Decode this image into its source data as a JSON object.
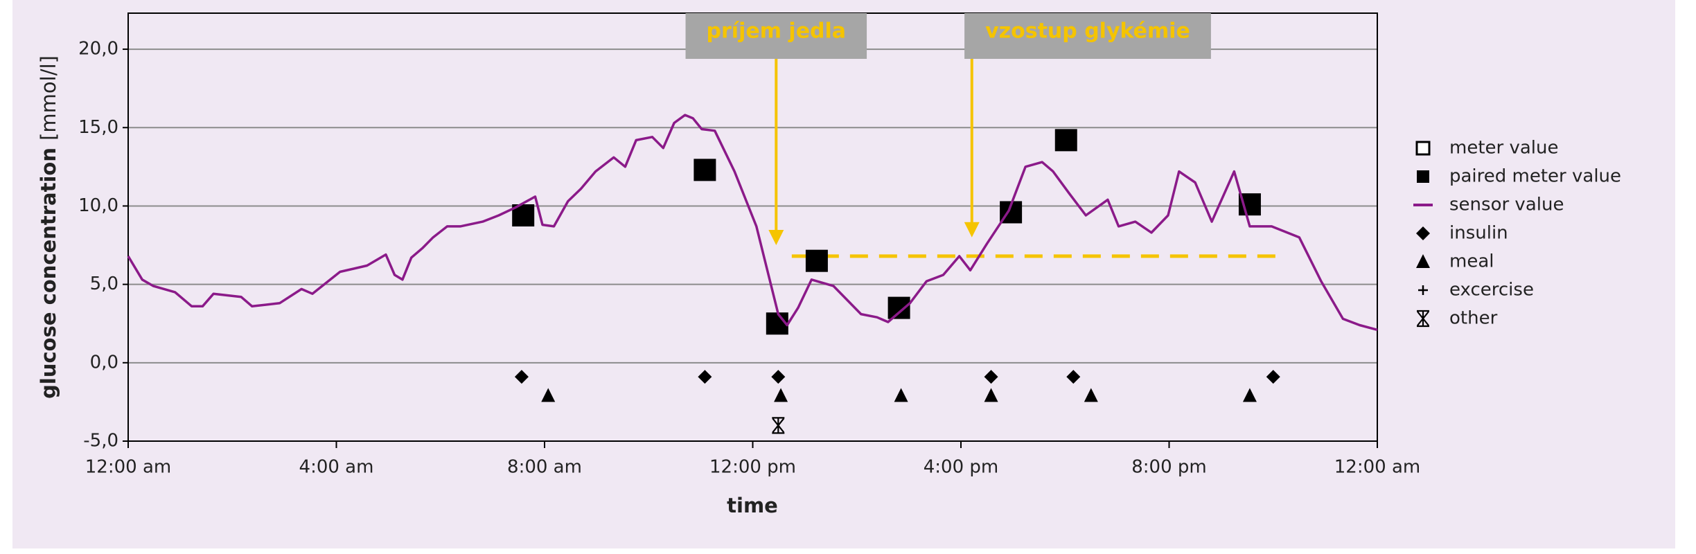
{
  "chart_data": {
    "type": "line",
    "xlabel": "time",
    "ylabel": "glucose concentration",
    "yunit": "[mmol/l]",
    "xlim": [
      0,
      24
    ],
    "xticks": [
      {
        "value": 0,
        "label": "12:00 am"
      },
      {
        "value": 4,
        "label": "4:00 am"
      },
      {
        "value": 8,
        "label": "8:00 am"
      },
      {
        "value": 12,
        "label": "12:00 pm"
      },
      {
        "value": 16,
        "label": "4:00 pm"
      },
      {
        "value": 20,
        "label": "8:00 pm"
      },
      {
        "value": 24,
        "label": "12:00 am"
      }
    ],
    "ylim": [
      -5,
      22.3
    ],
    "yticks": [
      {
        "value": -5,
        "label": "-5,0"
      },
      {
        "value": 0,
        "label": "0,0"
      },
      {
        "value": 5,
        "label": "5,0"
      },
      {
        "value": 10,
        "label": "10,0"
      },
      {
        "value": 15,
        "label": "15,0"
      },
      {
        "value": 20,
        "label": "20,0"
      }
    ],
    "grid": true,
    "legend": "right",
    "series": [
      {
        "name": "meter value",
        "marker": "open-square",
        "color": "#000000",
        "x": [],
        "values": []
      },
      {
        "name": "paired meter value",
        "marker": "square",
        "color": "#000000",
        "x": [
          7.59,
          11.08,
          12.47,
          13.23,
          14.81,
          16.96,
          18.02,
          21.55
        ],
        "values": [
          9.4,
          12.3,
          2.5,
          6.5,
          3.5,
          9.6,
          14.2,
          10.1
        ]
      },
      {
        "name": "sensor value",
        "marker": "line",
        "color": "#8b1a89",
        "x": [
          0,
          0.27,
          0.48,
          0.9,
          1.22,
          1.43,
          1.64,
          2.17,
          2.38,
          2.91,
          3.33,
          3.54,
          4.07,
          4.59,
          4.95,
          5.12,
          5.27,
          5.44,
          5.65,
          5.86,
          6.13,
          6.38,
          6.81,
          7.12,
          7.44,
          7.82,
          7.96,
          8.18,
          8.45,
          8.7,
          8.98,
          9.33,
          9.55,
          9.76,
          10.07,
          10.28,
          10.49,
          10.7,
          10.85,
          11.02,
          11.27,
          11.65,
          12.07,
          12.49,
          12.66,
          12.87,
          13.13,
          13.55,
          14.08,
          14.39,
          14.6,
          15.02,
          15.34,
          15.66,
          15.97,
          16.18,
          16.5,
          16.92,
          17.24,
          17.56,
          17.77,
          18.08,
          18.4,
          18.82,
          19.03,
          19.35,
          19.66,
          19.98,
          20.19,
          20.5,
          20.82,
          21.25,
          21.55,
          21.97,
          22.5,
          22.92,
          23.34,
          23.66,
          24
        ],
        "values": [
          6.8,
          5.3,
          4.9,
          4.5,
          3.6,
          3.6,
          4.4,
          4.2,
          3.6,
          3.8,
          4.7,
          4.4,
          5.8,
          6.2,
          6.9,
          5.6,
          5.3,
          6.7,
          7.3,
          8.0,
          8.7,
          8.7,
          9.0,
          9.4,
          9.9,
          10.6,
          8.8,
          8.7,
          10.3,
          11.1,
          12.2,
          13.1,
          12.5,
          14.2,
          14.4,
          13.7,
          15.3,
          15.8,
          15.6,
          14.9,
          14.8,
          12.2,
          8.7,
          3.1,
          2.4,
          3.5,
          5.3,
          4.9,
          3.1,
          2.9,
          2.6,
          3.8,
          5.2,
          5.6,
          6.8,
          5.9,
          7.6,
          9.7,
          12.5,
          12.8,
          12.2,
          10.8,
          9.4,
          10.4,
          8.7,
          9.0,
          8.3,
          9.4,
          12.2,
          11.5,
          9.0,
          12.2,
          8.7,
          8.7,
          8.0,
          5.2,
          2.8,
          2.4,
          2.1
        ]
      },
      {
        "name": "insulin",
        "marker": "diamond",
        "color": "#000000",
        "x": [
          7.56,
          11.08,
          12.49,
          16.58,
          18.16,
          22.0
        ],
        "values": [
          -0.9,
          -0.9,
          -0.9,
          -0.9,
          -0.9,
          -0.9
        ]
      },
      {
        "name": "meal",
        "marker": "triangle",
        "color": "#000000",
        "x": [
          8.07,
          12.54,
          14.85,
          16.58,
          18.5,
          21.55
        ],
        "values": [
          -2.1,
          -2.1,
          -2.1,
          -2.1,
          -2.1,
          -2.1
        ]
      },
      {
        "name": "excercise",
        "marker": "plus",
        "color": "#000000",
        "x": [],
        "values": []
      },
      {
        "name": "other",
        "marker": "asterisk",
        "color": "#000000",
        "x": [
          12.49
        ],
        "values": [
          -4.0
        ]
      }
    ],
    "reference_line": {
      "y": 6.8,
      "x": [
        12.75,
        22.2
      ],
      "color": "#f5c400"
    },
    "annotations": [
      {
        "text": "príjem jedla",
        "x": 12.45,
        "y": 7.5
      },
      {
        "text": "vzostup glykémie",
        "x": 16.21,
        "y": 8.0
      }
    ]
  }
}
